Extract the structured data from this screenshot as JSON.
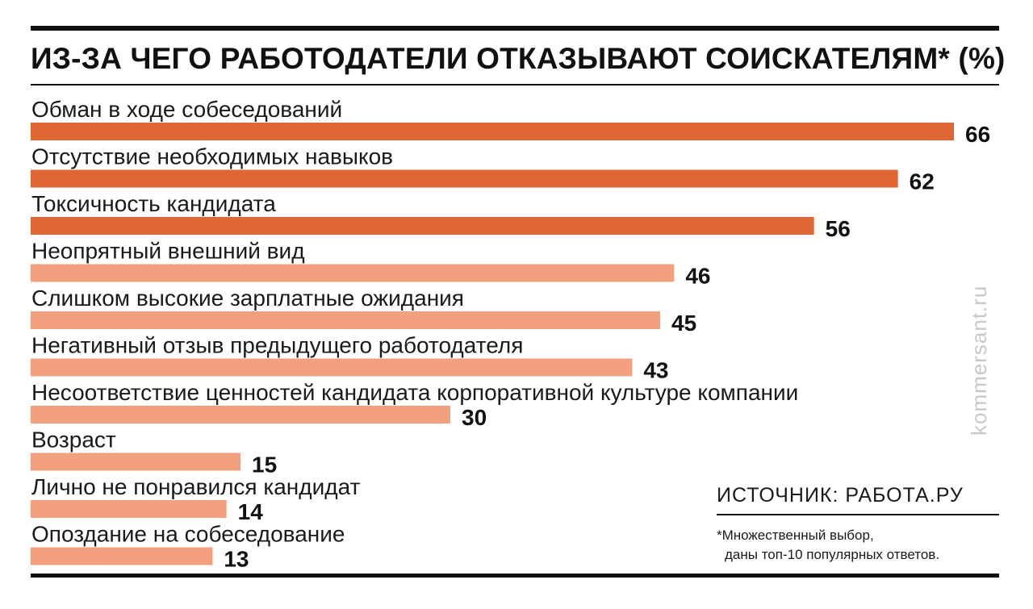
{
  "title": "ИЗ-ЗА ЧЕГО РАБОТОДАТЕЛИ ОТКАЗЫВАЮТ СОИСКАТЕЛЯМ* (%)",
  "watermark": "kommersant.ru",
  "source": "ИСТОЧНИК: РАБОТА.РУ",
  "footnote": {
    "line1": "*Множественный выбор,",
    "line2": "даны топ-10 популярных ответов."
  },
  "colors": {
    "dark_bar": "#dd6633",
    "light_bar": "#f2a07d"
  },
  "chart_data": {
    "type": "bar",
    "orientation": "horizontal",
    "title": "ИЗ-ЗА ЧЕГО РАБОТОДАТЕЛИ ОТКАЗЫВАЮТ СОИСКАТЕЛЯМ* (%)",
    "categories": [
      "Обман в ходе собеседований",
      "Отсутствие необходимых навыков",
      "Токсичность кандидата",
      "Неопрятный внешний вид",
      "Слишком высокие зарплатные ожидания",
      "Негативный отзыв предыдущего работодателя",
      "Несоответствие ценностей кандидата корпоративной культуре компании",
      "Возраст",
      "Лично не понравился кандидат",
      "Опоздание на собеседование"
    ],
    "values": [
      66,
      62,
      56,
      46,
      45,
      43,
      30,
      15,
      14,
      13
    ],
    "highlighted_count": 3,
    "xlim": [
      0,
      66
    ],
    "grid": false,
    "legend": false
  }
}
